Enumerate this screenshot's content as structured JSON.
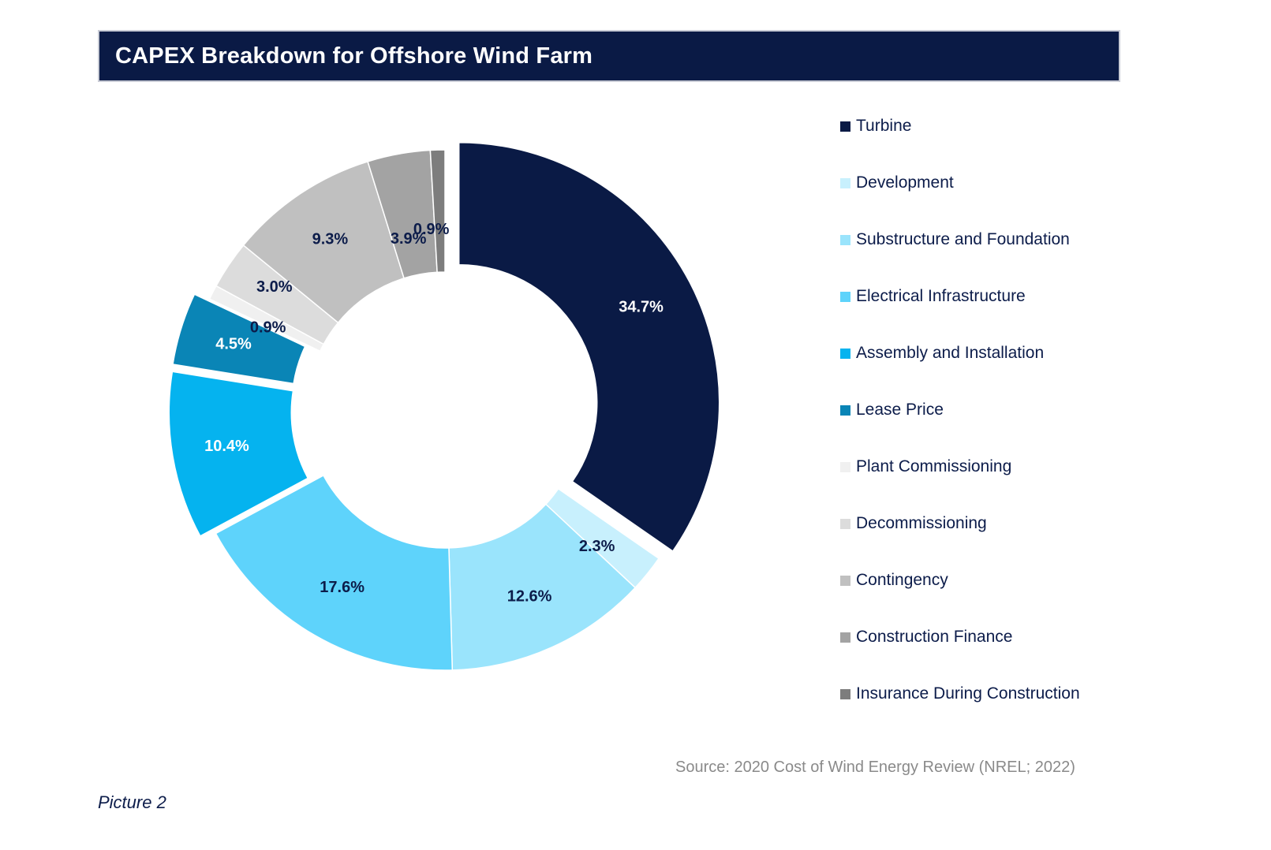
{
  "title": "CAPEX Breakdown for Offshore Wind Farm",
  "source": "Source: 2020 Cost of Wind Energy Review (NREL; 2022)",
  "caption": "Picture 2",
  "chart_data": {
    "type": "pie",
    "variant": "donut",
    "title": "CAPEX Breakdown for Offshore Wind Farm",
    "unit": "%",
    "legend_position": "right",
    "slices": [
      {
        "name": "Turbine",
        "value": 34.7,
        "label": "34.7%",
        "color": "#0a1a45",
        "label_color": "#ffffff",
        "exploded": true
      },
      {
        "name": "Development",
        "value": 2.3,
        "label": "2.3%",
        "color": "#c8f0fd",
        "label_color": "#0c1c4a",
        "exploded": false
      },
      {
        "name": "Substructure and Foundation",
        "value": 12.6,
        "label": "12.6%",
        "color": "#9ae4fc",
        "label_color": "#0c1c4a",
        "exploded": false
      },
      {
        "name": "Electrical Infrastructure",
        "value": 17.6,
        "label": "17.6%",
        "color": "#5ed3fb",
        "label_color": "#0c1c4a",
        "exploded": false
      },
      {
        "name": "Assembly and Installation",
        "value": 10.4,
        "label": "10.4%",
        "color": "#05b3ef",
        "label_color": "#ffffff",
        "exploded": true
      },
      {
        "name": "Lease Price",
        "value": 4.5,
        "label": "4.5%",
        "color": "#0a85b6",
        "label_color": "#ffffff",
        "exploded": true
      },
      {
        "name": "Plant Commissioning",
        "value": 0.9,
        "label": "0.9%",
        "color": "#f0f0f0",
        "label_color": "#0c1c4a",
        "exploded": false
      },
      {
        "name": "Decommissioning",
        "value": 3.0,
        "label": "3.0%",
        "color": "#dcdcdc",
        "label_color": "#0c1c4a",
        "exploded": false
      },
      {
        "name": "Contingency",
        "value": 9.3,
        "label": "9.3%",
        "color": "#c0c0c0",
        "label_color": "#0c1c4a",
        "exploded": false
      },
      {
        "name": "Construction Finance",
        "value": 3.9,
        "label": "3.9%",
        "color": "#a3a3a3",
        "label_color": "#0c1c4a",
        "exploded": false
      },
      {
        "name": "Insurance During Construction",
        "value": 0.9,
        "label": "0.9%",
        "color": "#7d7d7d",
        "label_color": "#0c1c4a",
        "exploded": false
      }
    ]
  }
}
